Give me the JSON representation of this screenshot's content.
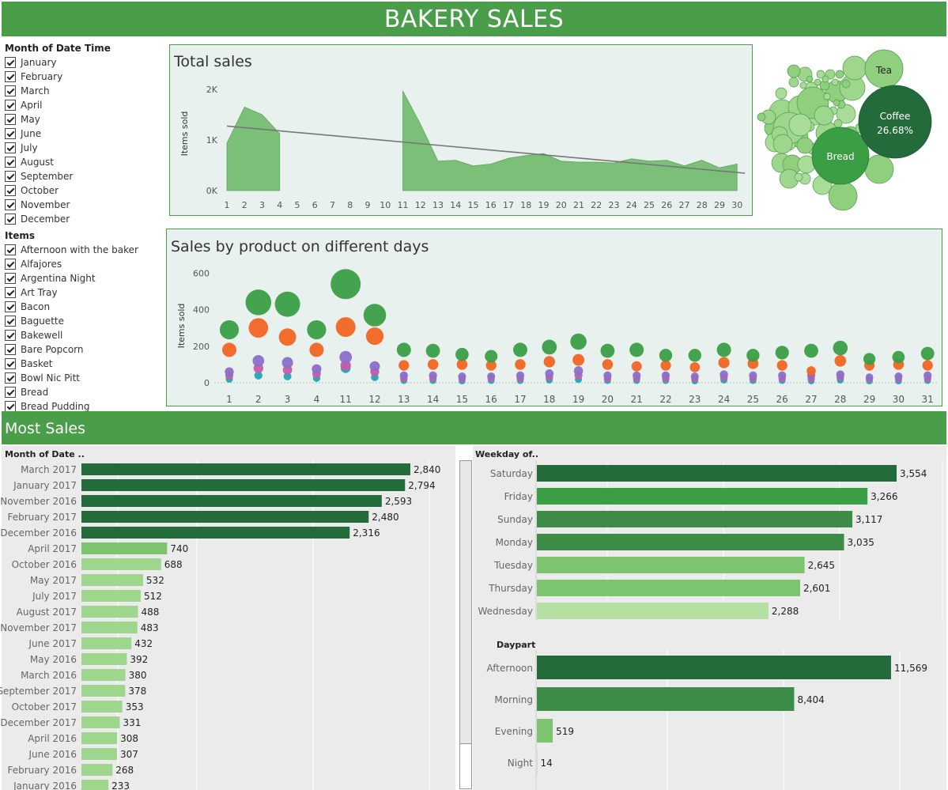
{
  "header": {
    "title": "BAKERY SALES"
  },
  "filters": {
    "month": {
      "title": "Month of Date Time",
      "items": [
        "January",
        "February",
        "March",
        "April",
        "May",
        "June",
        "July",
        "August",
        "September",
        "October",
        "November",
        "December"
      ]
    },
    "items": {
      "title": "Items",
      "items": [
        "Afternoon with the baker",
        "Alfajores",
        "Argentina Night",
        "Art Tray",
        "Bacon",
        "Baguette",
        "Bakewell",
        "Bare Popcorn",
        "Basket",
        "Bowl Nic Pitt",
        "Bread",
        "Bread Pudding"
      ]
    }
  },
  "section_band": {
    "title": "Most Sales"
  },
  "colors": {
    "dark_green": "#236b3a",
    "mid_green": "#3c8c47",
    "green": "#3a9e44",
    "light_green": "#7cc46f",
    "pale_green": "#b4e0a2",
    "area_fill": "#7bbf78",
    "orange": "#f26522",
    "purple": "#8b6fc7",
    "magenta": "#c75aa8",
    "teal": "#1fa6b5"
  },
  "chart_data": [
    {
      "type": "area",
      "title": "Total sales",
      "ylabel": "Items sold",
      "x": [
        1,
        2,
        3,
        4,
        5,
        6,
        7,
        8,
        9,
        10,
        11,
        12,
        13,
        14,
        15,
        16,
        17,
        18,
        19,
        20,
        21,
        22,
        23,
        24,
        25,
        26,
        27,
        28,
        29,
        30
      ],
      "y_ticks": [
        "0K",
        "1K",
        "2K"
      ],
      "ylim": [
        0,
        2400
      ],
      "segments": [
        {
          "x": [
            1,
            2,
            3,
            4
          ],
          "y": [
            1000,
            1760,
            1600,
            1200
          ]
        },
        {
          "x": [
            11,
            12,
            13,
            14,
            15,
            16,
            17,
            18,
            19,
            20,
            21,
            22,
            23,
            24,
            25,
            26,
            27,
            28,
            29,
            30
          ],
          "y": [
            2100,
            1400,
            620,
            640,
            520,
            560,
            680,
            740,
            780,
            620,
            600,
            600,
            580,
            670,
            620,
            640,
            520,
            640,
            480,
            560
          ]
        }
      ],
      "trend_line": {
        "x": [
          1,
          30
        ],
        "y": [
          1360,
          400
        ]
      }
    },
    {
      "type": "bubble",
      "labels_shown": [
        {
          "name": "Tea",
          "label": "Tea"
        },
        {
          "name": "Coffee",
          "label": "Coffee",
          "value_label": "26.68%"
        },
        {
          "name": "Bread",
          "label": "Bread"
        }
      ]
    },
    {
      "type": "scatter",
      "title": "Sales by product on different days",
      "ylabel": "Items sold",
      "x": [
        1,
        2,
        3,
        4,
        11,
        12,
        13,
        14,
        15,
        16,
        17,
        18,
        19,
        20,
        21,
        22,
        23,
        24,
        25,
        26,
        27,
        28,
        29,
        30,
        31
      ],
      "y_ticks": [
        0,
        200,
        400,
        600
      ],
      "ylim": [
        -20,
        640
      ],
      "series": [
        {
          "color": "green",
          "values": [
            290,
            440,
            430,
            290,
            540,
            370,
            180,
            175,
            155,
            145,
            180,
            195,
            225,
            175,
            180,
            150,
            150,
            180,
            150,
            165,
            175,
            190,
            130,
            140,
            160
          ]
        },
        {
          "color": "orange",
          "values": [
            180,
            300,
            250,
            180,
            305,
            255,
            95,
            100,
            100,
            95,
            100,
            115,
            125,
            100,
            90,
            95,
            85,
            110,
            105,
            95,
            65,
            120,
            95,
            100,
            95
          ]
        },
        {
          "color": "purple",
          "values": [
            60,
            120,
            110,
            75,
            140,
            90,
            40,
            40,
            35,
            35,
            40,
            50,
            65,
            40,
            40,
            40,
            35,
            45,
            40,
            40,
            40,
            45,
            30,
            35,
            40
          ]
        },
        {
          "color": "magenta",
          "values": [
            40,
            80,
            70,
            50,
            95,
            60,
            25,
            25,
            22,
            25,
            25,
            30,
            40,
            25,
            25,
            25,
            22,
            30,
            25,
            25,
            22,
            30,
            20,
            22,
            25
          ]
        },
        {
          "color": "teal",
          "values": [
            20,
            40,
            35,
            25,
            80,
            30,
            12,
            12,
            10,
            12,
            12,
            15,
            18,
            12,
            12,
            12,
            10,
            15,
            12,
            12,
            10,
            15,
            10,
            10,
            12
          ]
        }
      ]
    },
    {
      "type": "bar",
      "orientation": "horizontal",
      "header": "Month of Date ..",
      "categories": [
        "March 2017",
        "January 2017",
        "November 2016",
        "February 2017",
        "December 2016",
        "April 2017",
        "October 2016",
        "May 2017",
        "July 2017",
        "August 2017",
        "November 2017",
        "June 2017",
        "May 2016",
        "March 2016",
        "September 2017",
        "October 2017",
        "December 2017",
        "April 2016",
        "June 2016",
        "February 2016",
        "January 2016"
      ],
      "values": [
        2840,
        2794,
        2593,
        2480,
        2316,
        740,
        688,
        532,
        512,
        488,
        483,
        432,
        392,
        380,
        378,
        353,
        331,
        308,
        307,
        268,
        233
      ],
      "value_labels": [
        "2,840",
        "2,794",
        "2,593",
        "2,480",
        "2,316",
        "740",
        "688",
        "532",
        "512",
        "488",
        "483",
        "432",
        "392",
        "380",
        "378",
        "353",
        "331",
        "308",
        "307",
        "268",
        "233"
      ]
    },
    {
      "type": "bar",
      "orientation": "horizontal",
      "header": "Weekday of..",
      "categories": [
        "Saturday",
        "Friday",
        "Sunday",
        "Monday",
        "Tuesday",
        "Thursday",
        "Wednesday"
      ],
      "values": [
        3554,
        3266,
        3117,
        3035,
        2645,
        2601,
        2288
      ],
      "value_labels": [
        "3,554",
        "3,266",
        "3,117",
        "3,035",
        "2,645",
        "2,601",
        "2,288"
      ]
    },
    {
      "type": "bar",
      "orientation": "horizontal",
      "header": "Daypart",
      "categories": [
        "Afternoon",
        "Morning",
        "Evening",
        "Night"
      ],
      "values": [
        11569,
        8404,
        519,
        14
      ],
      "value_labels": [
        "11,569",
        "8,404",
        "519",
        "14"
      ]
    }
  ]
}
